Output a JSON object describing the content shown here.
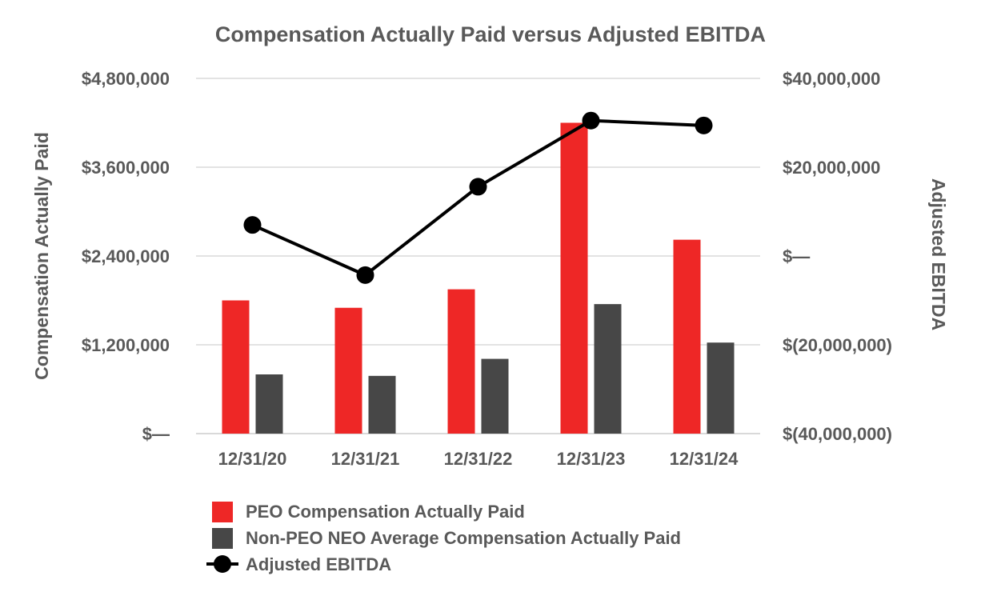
{
  "chart_data": {
    "type": "bar",
    "title": "Compensation Actually Paid versus Adjusted EBITDA",
    "categories": [
      "12/31/20",
      "12/31/21",
      "12/31/22",
      "12/31/23",
      "12/31/24"
    ],
    "series": [
      {
        "name": "PEO Compensation Actually Paid",
        "type": "bar",
        "axis": "left",
        "color": "#ee2726",
        "values": [
          1800000,
          1700000,
          1950000,
          4200000,
          2620000
        ]
      },
      {
        "name": "Non-PEO NEO Average Compensation Actually Paid",
        "type": "bar",
        "axis": "left",
        "color": "#474747",
        "values": [
          800000,
          780000,
          1010000,
          1750000,
          1230000
        ]
      },
      {
        "name": "Adjusted EBITDA",
        "type": "line",
        "axis": "right",
        "color": "#000000",
        "values": [
          7000000,
          -4300000,
          15600000,
          30500000,
          29400000
        ]
      }
    ],
    "y_left": {
      "label": "Compensation Actually Paid",
      "range": [
        0,
        4800000
      ],
      "ticks": [
        0,
        1200000,
        2400000,
        3600000,
        4800000
      ],
      "tick_labels": [
        "$—",
        "$1,200,000",
        "$2,400,000",
        "$3,600,000",
        "$4,800,000"
      ]
    },
    "y_right": {
      "label": "Adjusted EBITDA",
      "range": [
        -40000000,
        40000000
      ],
      "ticks": [
        -40000000,
        -20000000,
        0,
        20000000,
        40000000
      ],
      "tick_labels": [
        "$(40,000,000)",
        "$(20,000,000)",
        "$—",
        "$20,000,000",
        "$40,000,000"
      ]
    },
    "grid": true,
    "legend_position": "bottom"
  }
}
